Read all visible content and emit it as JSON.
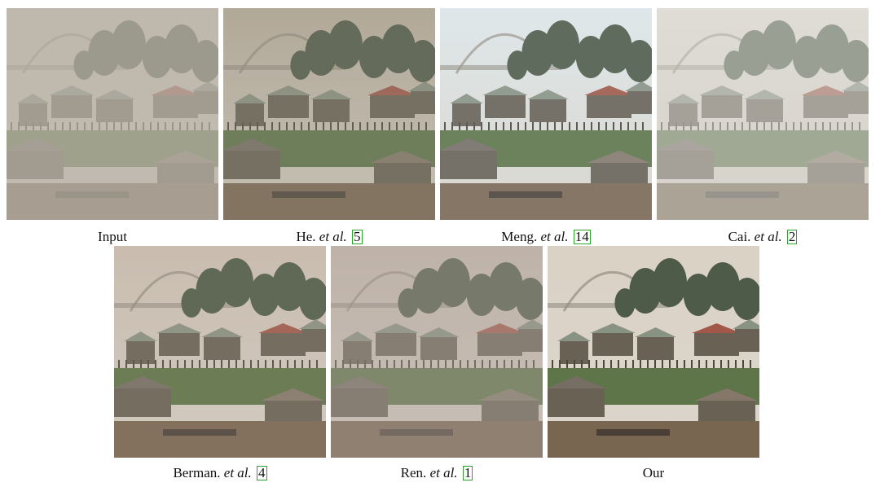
{
  "figure": {
    "panels": [
      {
        "id": "input",
        "author": "Input",
        "etal": "",
        "ref": "",
        "haze": 0.55,
        "tint": "#cfc6b8",
        "contrast": 0.55
      },
      {
        "id": "he",
        "author": "He.",
        "etal": "et al.",
        "ref": "5",
        "haze": 0.25,
        "tint": "#b9ae9c",
        "contrast": 0.85
      },
      {
        "id": "meng",
        "author": "Meng.",
        "etal": "et al.",
        "ref": "14",
        "haze": 0.2,
        "tint": "#dfe8ea",
        "contrast": 1.0
      },
      {
        "id": "cai",
        "author": "Cai.",
        "etal": "et al.",
        "ref": "2",
        "haze": 0.45,
        "tint": "#f1efe6",
        "contrast": 0.7
      },
      {
        "id": "berman",
        "author": "Berman.",
        "etal": "et al.",
        "ref": "4",
        "haze": 0.22,
        "tint": "#cdbfb2",
        "contrast": 0.95
      },
      {
        "id": "ren",
        "author": "Ren.",
        "etal": "et al.",
        "ref": "1",
        "haze": 0.35,
        "tint": "#c9bbb0",
        "contrast": 0.8
      },
      {
        "id": "our",
        "author": "Our",
        "etal": "",
        "ref": "",
        "haze": 0.12,
        "tint": "#d8cfc4",
        "contrast": 1.05
      }
    ],
    "colors": {
      "cite_box": "#2aa52a",
      "sky": "#d8d2c8",
      "water": "#6e5a44",
      "trees": "#3f4e3a",
      "roof": "#7f8a7a",
      "roof_red": "#9a4a3a",
      "grass": "#4f6a3a",
      "house": "#5c5448"
    }
  }
}
